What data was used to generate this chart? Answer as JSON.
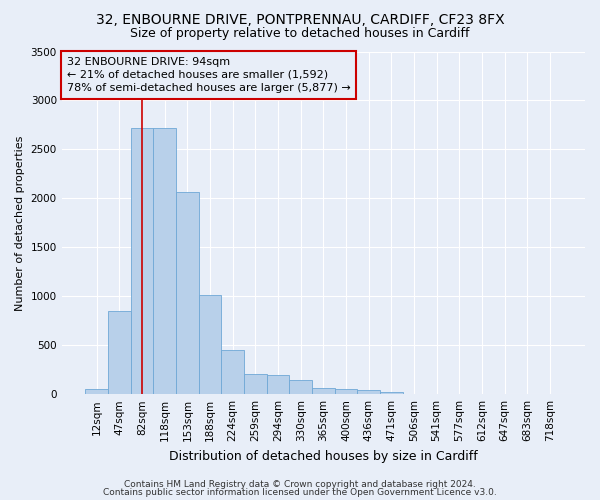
{
  "title": "32, ENBOURNE DRIVE, PONTPRENNAU, CARDIFF, CF23 8FX",
  "subtitle": "Size of property relative to detached houses in Cardiff",
  "xlabel": "Distribution of detached houses by size in Cardiff",
  "ylabel": "Number of detached properties",
  "bar_labels": [
    "12sqm",
    "47sqm",
    "82sqm",
    "118sqm",
    "153sqm",
    "188sqm",
    "224sqm",
    "259sqm",
    "294sqm",
    "330sqm",
    "365sqm",
    "400sqm",
    "436sqm",
    "471sqm",
    "506sqm",
    "541sqm",
    "577sqm",
    "612sqm",
    "647sqm",
    "683sqm",
    "718sqm"
  ],
  "bar_values": [
    55,
    850,
    2720,
    2720,
    2060,
    1010,
    450,
    210,
    200,
    140,
    60,
    55,
    40,
    20,
    0,
    0,
    0,
    0,
    0,
    0,
    0
  ],
  "bar_color": "#b8d0ea",
  "bar_edge_color": "#6fa8d6",
  "bar_edge_width": 0.6,
  "vline_color": "#cc0000",
  "vline_x_index": 2,
  "ylim": [
    0,
    3500
  ],
  "yticks": [
    0,
    500,
    1000,
    1500,
    2000,
    2500,
    3000,
    3500
  ],
  "annotation_line1": "32 ENBOURNE DRIVE: 94sqm",
  "annotation_line2": "← 21% of detached houses are smaller (1,592)",
  "annotation_line3": "78% of semi-detached houses are larger (5,877) →",
  "footer_line1": "Contains HM Land Registry data © Crown copyright and database right 2024.",
  "footer_line2": "Contains public sector information licensed under the Open Government Licence v3.0.",
  "bg_color": "#e8eef8",
  "grid_color": "#ffffff",
  "title_fontsize": 10,
  "subtitle_fontsize": 9,
  "xlabel_fontsize": 9,
  "ylabel_fontsize": 8,
  "tick_fontsize": 7.5,
  "annotation_fontsize": 8,
  "footer_fontsize": 6.5
}
